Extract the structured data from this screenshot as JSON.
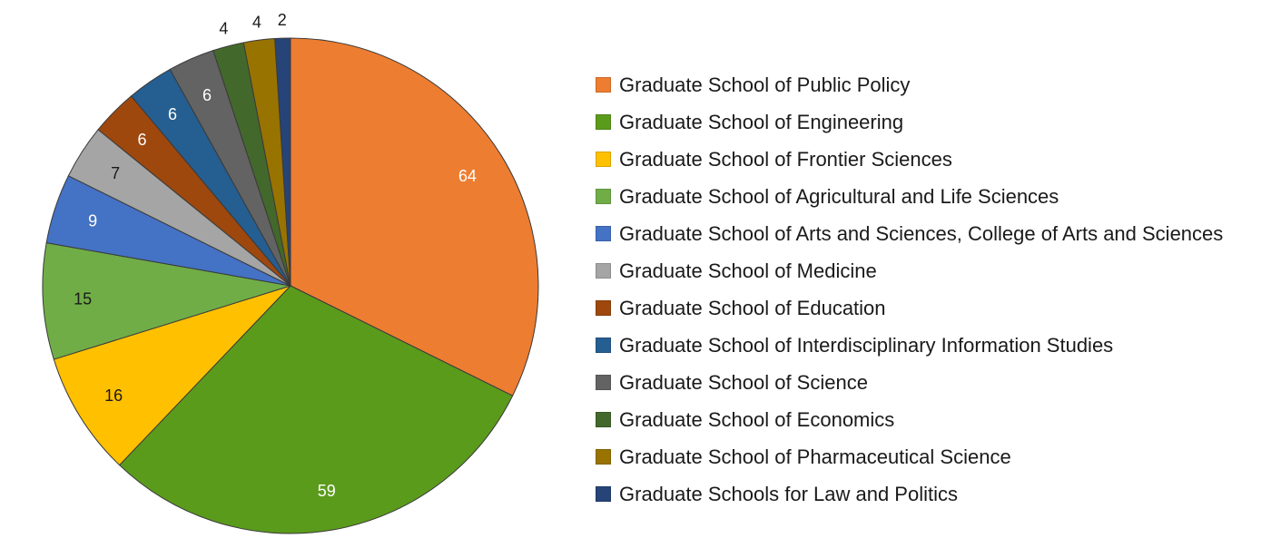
{
  "chart_data": {
    "type": "pie",
    "title": "",
    "legend_position": "right",
    "categories": [
      "Graduate School of Public Policy",
      "Graduate School of Engineering",
      "Graduate School of Frontier Sciences",
      "Graduate School of Agricultural and Life Sciences",
      "Graduate School of Arts and Sciences, College of Arts and Sciences",
      "Graduate School of Medicine",
      "Graduate School of Education",
      "Graduate School of Interdisciplinary Information Studies",
      "Graduate School of Science",
      "Graduate School of Economics",
      "Graduate School of Pharmaceutical Science",
      "Graduate Schools for Law and Politics"
    ],
    "values": [
      64,
      59,
      16,
      15,
      9,
      7,
      6,
      6,
      6,
      4,
      4,
      2
    ],
    "colors": [
      "#ED7D31",
      "#5B9B1C",
      "#FFC000",
      "#70AD47",
      "#4472C4",
      "#A5A5A5",
      "#9E480E",
      "#255E91",
      "#636363",
      "#43682B",
      "#997300",
      "#264478"
    ],
    "label_colors": [
      "#ffffff",
      "#ffffff",
      "#1a1a1a",
      "#1a1a1a",
      "#ffffff",
      "#1a1a1a",
      "#ffffff",
      "#ffffff",
      "#ffffff",
      "#1a1a1a",
      "#1a1a1a",
      "#1a1a1a"
    ],
    "label_placement": [
      "inside",
      "inside",
      "inside",
      "inside",
      "inside",
      "inside",
      "inside",
      "inside",
      "inside",
      "outside",
      "outside",
      "outside"
    ]
  }
}
